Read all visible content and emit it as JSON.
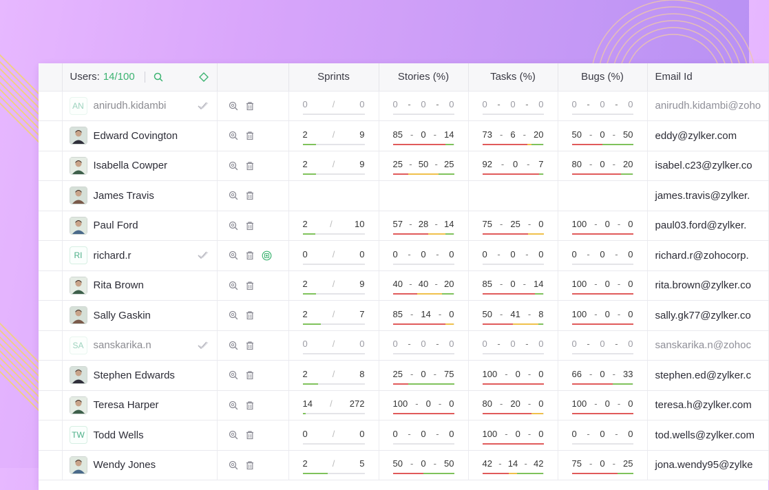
{
  "header": {
    "users_label": "Users:",
    "users_count": "14/100",
    "sprints": "Sprints",
    "stories": "Stories (%)",
    "tasks": "Tasks (%)",
    "bugs": "Bugs (%)",
    "email": "Email Id"
  },
  "colors": {
    "red": "#e05a5a",
    "yellow": "#f0c04a",
    "green": "#7fc25b",
    "accent": "#3cb371"
  },
  "icons": [
    "search-icon",
    "diamond-icon",
    "zoom-icon",
    "trash-icon",
    "check-icon",
    "activate-icon"
  ],
  "rows": [
    {
      "name": "anirudh.kidambi",
      "initials": "AN",
      "photo": false,
      "inactive": true,
      "checked": true,
      "extra_icon": false,
      "sprints": [
        "0",
        "0"
      ],
      "sprint_progress": 0,
      "stories": [
        "0",
        "0",
        "0"
      ],
      "tasks": [
        "0",
        "0",
        "0"
      ],
      "bugs": [
        "0",
        "0",
        "0"
      ],
      "email": "anirudh.kidambi@zoho"
    },
    {
      "name": "Edward Covington",
      "initials": "",
      "photo": true,
      "inactive": false,
      "checked": false,
      "extra_icon": false,
      "sprints": [
        "2",
        "9"
      ],
      "sprint_progress": 0.22,
      "stories": [
        "85",
        "0",
        "14"
      ],
      "tasks": [
        "73",
        "6",
        "20"
      ],
      "bugs": [
        "50",
        "0",
        "50"
      ],
      "email": "eddy@zylker.com"
    },
    {
      "name": "Isabella Cowper",
      "initials": "",
      "photo": true,
      "inactive": false,
      "checked": false,
      "extra_icon": false,
      "sprints": [
        "2",
        "9"
      ],
      "sprint_progress": 0.22,
      "stories": [
        "25",
        "50",
        "25"
      ],
      "tasks": [
        "92",
        "0",
        "7"
      ],
      "bugs": [
        "80",
        "0",
        "20"
      ],
      "email": "isabel.c23@zylker.co"
    },
    {
      "name": "James Travis",
      "initials": "",
      "photo": true,
      "inactive": false,
      "checked": false,
      "extra_icon": false,
      "empty": true,
      "email": "james.travis@zylker."
    },
    {
      "name": "Paul Ford",
      "initials": "",
      "photo": true,
      "inactive": false,
      "checked": false,
      "extra_icon": false,
      "sprints": [
        "2",
        "10"
      ],
      "sprint_progress": 0.2,
      "stories": [
        "57",
        "28",
        "14"
      ],
      "tasks": [
        "75",
        "25",
        "0"
      ],
      "bugs": [
        "100",
        "0",
        "0"
      ],
      "email": "paul03.ford@zylker."
    },
    {
      "name": "richard.r",
      "initials": "RI",
      "photo": false,
      "inactive": false,
      "checked": true,
      "extra_icon": true,
      "sprints": [
        "0",
        "0"
      ],
      "sprint_progress": 0,
      "stories": [
        "0",
        "0",
        "0"
      ],
      "tasks": [
        "0",
        "0",
        "0"
      ],
      "bugs": [
        "0",
        "0",
        "0"
      ],
      "email": "richard.r@zohocorp."
    },
    {
      "name": "Rita Brown",
      "initials": "",
      "photo": true,
      "inactive": false,
      "checked": false,
      "extra_icon": false,
      "sprints": [
        "2",
        "9"
      ],
      "sprint_progress": 0.22,
      "stories": [
        "40",
        "40",
        "20"
      ],
      "tasks": [
        "85",
        "0",
        "14"
      ],
      "bugs": [
        "100",
        "0",
        "0"
      ],
      "email": "rita.brown@zylker.co"
    },
    {
      "name": "Sally Gaskin",
      "initials": "",
      "photo": true,
      "inactive": false,
      "checked": false,
      "extra_icon": false,
      "sprints": [
        "2",
        "7"
      ],
      "sprint_progress": 0.29,
      "stories": [
        "85",
        "14",
        "0"
      ],
      "tasks": [
        "50",
        "41",
        "8"
      ],
      "bugs": [
        "100",
        "0",
        "0"
      ],
      "email": "sally.gk77@zylker.co"
    },
    {
      "name": "sanskarika.n",
      "initials": "SA",
      "photo": false,
      "inactive": true,
      "checked": true,
      "extra_icon": false,
      "sprints": [
        "0",
        "0"
      ],
      "sprint_progress": 0,
      "stories": [
        "0",
        "0",
        "0"
      ],
      "tasks": [
        "0",
        "0",
        "0"
      ],
      "bugs": [
        "0",
        "0",
        "0"
      ],
      "email": "sanskarika.n@zohoc"
    },
    {
      "name": "Stephen Edwards",
      "initials": "",
      "photo": true,
      "inactive": false,
      "checked": false,
      "extra_icon": false,
      "sprints": [
        "2",
        "8"
      ],
      "sprint_progress": 0.25,
      "stories": [
        "25",
        "0",
        "75"
      ],
      "tasks": [
        "100",
        "0",
        "0"
      ],
      "bugs": [
        "66",
        "0",
        "33"
      ],
      "email": "stephen.ed@zylker.c"
    },
    {
      "name": "Teresa Harper",
      "initials": "",
      "photo": true,
      "inactive": false,
      "checked": false,
      "extra_icon": false,
      "sprints": [
        "14",
        "272"
      ],
      "sprint_progress": 0.05,
      "stories": [
        "100",
        "0",
        "0"
      ],
      "tasks": [
        "80",
        "20",
        "0"
      ],
      "bugs": [
        "100",
        "0",
        "0"
      ],
      "email": "teresa.h@zylker.com"
    },
    {
      "name": "Todd Wells",
      "initials": "TW",
      "photo": false,
      "inactive": false,
      "checked": false,
      "extra_icon": false,
      "sprints": [
        "0",
        "0"
      ],
      "sprint_progress": 0,
      "stories": [
        "0",
        "0",
        "0"
      ],
      "tasks": [
        "100",
        "0",
        "0"
      ],
      "bugs": [
        "0",
        "0",
        "0"
      ],
      "email": "tod.wells@zylker.com"
    },
    {
      "name": "Wendy Jones",
      "initials": "",
      "photo": true,
      "inactive": false,
      "checked": false,
      "extra_icon": false,
      "sprints": [
        "2",
        "5"
      ],
      "sprint_progress": 0.4,
      "stories": [
        "50",
        "0",
        "50"
      ],
      "tasks": [
        "42",
        "14",
        "42"
      ],
      "bugs": [
        "75",
        "0",
        "25"
      ],
      "email": "jona.wendy95@zylke"
    }
  ]
}
